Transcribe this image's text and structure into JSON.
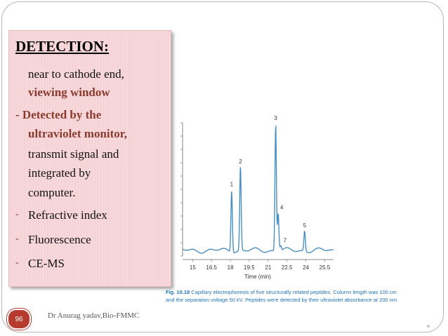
{
  "slide": {
    "heading": "DETECTION:",
    "lines": [
      "near to cathode end,",
      "viewing window",
      "- Detected by the",
      "ultraviolet monitor,",
      "transmit signal and",
      "integrated by",
      "computer.",
      "Refractive index",
      "Fluorescence",
      "CE-MS"
    ],
    "bullet_dash": "-",
    "page_number": "96",
    "footer": "Dr Anurag yadav,Bio-FMMC",
    "caption_fig": "Fig. 10.18",
    "caption_line1": "Capillary electrophoresis of five structurally related peptides. Column length was 100 cm",
    "caption_line2": "and the separation voltage 50 kV. Peptides were detected by their ultraviolet absorbance at 200 nm"
  },
  "colors": {
    "trace": "#4a8fc2",
    "accent": "#8b3a2e",
    "caption": "#1f74b8",
    "box": "#f5d3d6"
  },
  "chart_data": {
    "type": "line",
    "xlabel": "Time (min)",
    "xticks": [
      "15",
      "16.5",
      "18",
      "19.5",
      "21",
      "22.5",
      "24",
      "25.5"
    ],
    "xlim": [
      14.2,
      26.2
    ],
    "peaks": [
      {
        "label": "1",
        "x": 18.1,
        "height": 0.48
      },
      {
        "label": "2",
        "x": 18.8,
        "height": 0.66
      },
      {
        "label": "3",
        "x": 21.6,
        "height": 1.0
      },
      {
        "label": "4",
        "x": 21.8,
        "height": 0.3
      },
      {
        "label": "5",
        "x": 23.9,
        "height": 0.16
      },
      {
        "label": "7",
        "x": 22.0,
        "height": 0.04
      }
    ],
    "grid": false,
    "legend": "none"
  }
}
